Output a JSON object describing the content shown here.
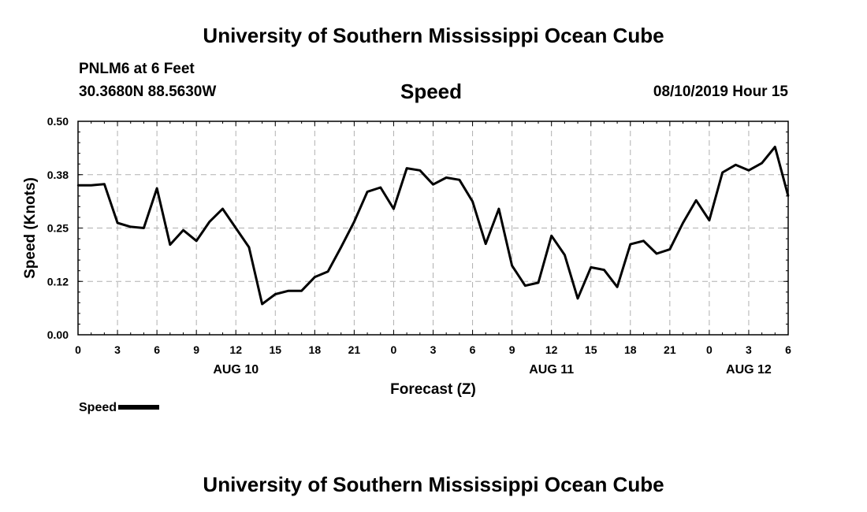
{
  "header": {
    "main_title": "University of Southern Mississippi Ocean Cube",
    "station": "PNLM6 at 6 Feet",
    "coords": "30.3680N 88.5630W",
    "chart_title": "Speed",
    "datetime": "08/10/2019 Hour 15"
  },
  "footer": {
    "title": "University of Southern Mississippi Ocean Cube"
  },
  "legend": {
    "label": "Speed"
  },
  "colors": {
    "line": "#000000",
    "grid": "#b0b0b0",
    "background": "#ffffff"
  },
  "chart_data": {
    "type": "line",
    "title": "Speed",
    "xlabel": "Forecast (Z)",
    "ylabel": "Speed (Knots)",
    "ylim": [
      0,
      0.5
    ],
    "xlim": [
      0,
      54
    ],
    "x_unit": "hours from 00Z Aug 10",
    "yticks": [
      0.0,
      0.125,
      0.25,
      0.375,
      0.5
    ],
    "ytick_labels": [
      "0.00",
      "0.12",
      "0.25",
      "0.38",
      "0.50"
    ],
    "xticks": [
      0,
      3,
      6,
      9,
      12,
      15,
      18,
      21,
      24,
      27,
      30,
      33,
      36,
      39,
      42,
      45,
      48,
      51,
      54
    ],
    "xtick_labels": [
      "0",
      "3",
      "6",
      "9",
      "12",
      "15",
      "18",
      "21",
      "0",
      "3",
      "6",
      "9",
      "12",
      "15",
      "18",
      "21",
      "0",
      "3",
      "6"
    ],
    "date_labels": [
      {
        "x": 12,
        "label": "AUG 10"
      },
      {
        "x": 36,
        "label": "AUG 11"
      },
      {
        "x": 51,
        "label": "AUG 12"
      }
    ],
    "grid": true,
    "series": [
      {
        "name": "Speed",
        "x": [
          0,
          1,
          2,
          3,
          4,
          5,
          6,
          7,
          8,
          9,
          10,
          11,
          12,
          13,
          14,
          15,
          16,
          17,
          18,
          19,
          20,
          21,
          22,
          23,
          24,
          25,
          26,
          27,
          28,
          29,
          30,
          31,
          32,
          33,
          34,
          35,
          36,
          37,
          38,
          39,
          40,
          41,
          42,
          43,
          44,
          45,
          46,
          47,
          48,
          49,
          50,
          51,
          52,
          53,
          54
        ],
        "values": [
          0.35,
          0.35,
          0.353,
          0.262,
          0.253,
          0.25,
          0.343,
          0.211,
          0.245,
          0.22,
          0.265,
          0.295,
          0.25,
          0.205,
          0.072,
          0.095,
          0.103,
          0.103,
          0.135,
          0.148,
          0.205,
          0.265,
          0.335,
          0.345,
          0.295,
          0.39,
          0.385,
          0.352,
          0.368,
          0.363,
          0.312,
          0.213,
          0.295,
          0.162,
          0.115,
          0.122,
          0.232,
          0.187,
          0.085,
          0.158,
          0.152,
          0.112,
          0.212,
          0.22,
          0.19,
          0.2,
          0.262,
          0.315,
          0.268,
          0.38,
          0.398,
          0.385,
          0.402,
          0.44,
          0.325
        ]
      }
    ]
  }
}
